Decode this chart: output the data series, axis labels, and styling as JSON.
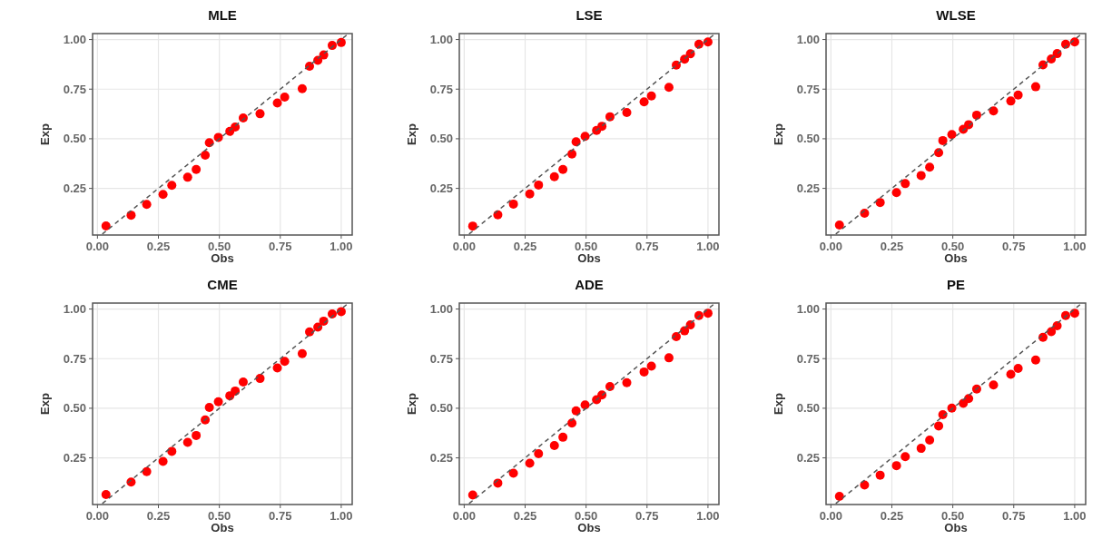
{
  "chart_data": [
    {
      "type": "scatter",
      "title": "MLE",
      "xlabel": "Obs",
      "ylabel": "Exp",
      "xlim": [
        -0.02,
        1.045
      ],
      "ylim": [
        0.015,
        1.03
      ],
      "grid": true,
      "xticks": [
        {
          "value": 0,
          "label": "0.00"
        },
        {
          "value": 0.25,
          "label": "0.25"
        },
        {
          "value": 0.5,
          "label": "0.50"
        },
        {
          "value": 0.75,
          "label": "0.75"
        },
        {
          "value": 1,
          "label": "1.00"
        }
      ],
      "yticks": [
        {
          "value": 0.25,
          "label": "0.25"
        },
        {
          "value": 0.5,
          "label": "0.50"
        },
        {
          "value": 0.75,
          "label": "0.75"
        },
        {
          "value": 1,
          "label": "1.00"
        }
      ],
      "series": [
        {
          "type": "scatter",
          "marker": "circle",
          "color": "#ff0000",
          "x": [
            0.035,
            0.138,
            0.202,
            0.269,
            0.305,
            0.37,
            0.405,
            0.442,
            0.459,
            0.496,
            0.543,
            0.565,
            0.598,
            0.667,
            0.738,
            0.768,
            0.84,
            0.87,
            0.904,
            0.928,
            0.963,
            1.0
          ],
          "values": [
            0.061,
            0.115,
            0.169,
            0.22,
            0.265,
            0.306,
            0.345,
            0.417,
            0.48,
            0.507,
            0.537,
            0.559,
            0.605,
            0.626,
            0.68,
            0.71,
            0.752,
            0.865,
            0.895,
            0.922,
            0.97,
            0.985
          ]
        },
        {
          "type": "line",
          "marker": "none",
          "line_style": "dashed",
          "color": "#555555",
          "x": [
            0.02,
            1.03
          ],
          "values": [
            0.02,
            1.03
          ]
        }
      ]
    },
    {
      "type": "scatter",
      "title": "LSE",
      "xlabel": "Obs",
      "ylabel": "Exp",
      "xlim": [
        -0.02,
        1.045
      ],
      "ylim": [
        0.015,
        1.03
      ],
      "grid": true,
      "xticks": [
        {
          "value": 0,
          "label": "0.00"
        },
        {
          "value": 0.25,
          "label": "0.25"
        },
        {
          "value": 0.5,
          "label": "0.50"
        },
        {
          "value": 0.75,
          "label": "0.75"
        },
        {
          "value": 1,
          "label": "1.00"
        }
      ],
      "yticks": [
        {
          "value": 0.25,
          "label": "0.25"
        },
        {
          "value": 0.5,
          "label": "0.50"
        },
        {
          "value": 0.75,
          "label": "0.75"
        },
        {
          "value": 1,
          "label": "1.00"
        }
      ],
      "series": [
        {
          "type": "scatter",
          "marker": "circle",
          "color": "#ff0000",
          "x": [
            0.035,
            0.138,
            0.202,
            0.269,
            0.305,
            0.37,
            0.405,
            0.442,
            0.459,
            0.496,
            0.543,
            0.565,
            0.598,
            0.667,
            0.738,
            0.768,
            0.84,
            0.87,
            0.904,
            0.928,
            0.963,
            1.0
          ],
          "values": [
            0.06,
            0.117,
            0.171,
            0.222,
            0.267,
            0.309,
            0.345,
            0.423,
            0.485,
            0.512,
            0.542,
            0.563,
            0.611,
            0.632,
            0.686,
            0.716,
            0.759,
            0.871,
            0.901,
            0.928,
            0.976,
            0.988
          ]
        },
        {
          "type": "line",
          "marker": "none",
          "line_style": "dashed",
          "color": "#555555",
          "x": [
            0.02,
            1.03
          ],
          "values": [
            0.02,
            1.03
          ]
        }
      ]
    },
    {
      "type": "scatter",
      "title": "WLSE",
      "xlabel": "Obs",
      "ylabel": "Exp",
      "xlim": [
        -0.02,
        1.045
      ],
      "ylim": [
        0.015,
        1.03
      ],
      "grid": true,
      "xticks": [
        {
          "value": 0,
          "label": "0.00"
        },
        {
          "value": 0.25,
          "label": "0.25"
        },
        {
          "value": 0.5,
          "label": "0.50"
        },
        {
          "value": 0.75,
          "label": "0.75"
        },
        {
          "value": 1,
          "label": "1.00"
        }
      ],
      "yticks": [
        {
          "value": 0.25,
          "label": "0.25"
        },
        {
          "value": 0.5,
          "label": "0.50"
        },
        {
          "value": 0.75,
          "label": "0.75"
        },
        {
          "value": 1,
          "label": "1.00"
        }
      ],
      "series": [
        {
          "type": "scatter",
          "marker": "circle",
          "color": "#ff0000",
          "x": [
            0.035,
            0.138,
            0.202,
            0.269,
            0.305,
            0.37,
            0.405,
            0.442,
            0.459,
            0.496,
            0.543,
            0.565,
            0.598,
            0.667,
            0.738,
            0.768,
            0.84,
            0.87,
            0.904,
            0.928,
            0.963,
            1.0
          ],
          "values": [
            0.065,
            0.125,
            0.179,
            0.229,
            0.274,
            0.315,
            0.357,
            0.43,
            0.491,
            0.521,
            0.548,
            0.571,
            0.619,
            0.64,
            0.69,
            0.72,
            0.762,
            0.872,
            0.902,
            0.929,
            0.976,
            0.988
          ]
        },
        {
          "type": "line",
          "marker": "none",
          "line_style": "dashed",
          "color": "#555555",
          "x": [
            0.02,
            1.03
          ],
          "values": [
            0.02,
            1.03
          ]
        }
      ]
    },
    {
      "type": "scatter",
      "title": "CME",
      "xlabel": "Obs",
      "ylabel": "Exp",
      "xlim": [
        -0.02,
        1.045
      ],
      "ylim": [
        0.015,
        1.03
      ],
      "grid": true,
      "xticks": [
        {
          "value": 0,
          "label": "0.00"
        },
        {
          "value": 0.25,
          "label": "0.25"
        },
        {
          "value": 0.5,
          "label": "0.50"
        },
        {
          "value": 0.75,
          "label": "0.75"
        },
        {
          "value": 1,
          "label": "1.00"
        }
      ],
      "yticks": [
        {
          "value": 0.25,
          "label": "0.25"
        },
        {
          "value": 0.5,
          "label": "0.50"
        },
        {
          "value": 0.75,
          "label": "0.75"
        },
        {
          "value": 1,
          "label": "1.00"
        }
      ],
      "series": [
        {
          "type": "scatter",
          "marker": "circle",
          "color": "#ff0000",
          "x": [
            0.035,
            0.138,
            0.202,
            0.269,
            0.305,
            0.37,
            0.405,
            0.442,
            0.459,
            0.496,
            0.543,
            0.565,
            0.598,
            0.667,
            0.738,
            0.768,
            0.84,
            0.87,
            0.904,
            0.928,
            0.963,
            1.0
          ],
          "values": [
            0.065,
            0.128,
            0.181,
            0.232,
            0.283,
            0.328,
            0.363,
            0.441,
            0.504,
            0.533,
            0.563,
            0.587,
            0.632,
            0.65,
            0.703,
            0.736,
            0.775,
            0.885,
            0.909,
            0.939,
            0.975,
            0.987
          ]
        },
        {
          "type": "line",
          "marker": "none",
          "line_style": "dashed",
          "color": "#555555",
          "x": [
            0.02,
            1.03
          ],
          "values": [
            0.02,
            1.03
          ]
        }
      ]
    },
    {
      "type": "scatter",
      "title": "ADE",
      "xlabel": "Obs",
      "ylabel": "Exp",
      "xlim": [
        -0.02,
        1.045
      ],
      "ylim": [
        0.015,
        1.03
      ],
      "grid": true,
      "xticks": [
        {
          "value": 0,
          "label": "0.00"
        },
        {
          "value": 0.25,
          "label": "0.25"
        },
        {
          "value": 0.5,
          "label": "0.50"
        },
        {
          "value": 0.75,
          "label": "0.75"
        },
        {
          "value": 1,
          "label": "1.00"
        }
      ],
      "yticks": [
        {
          "value": 0.25,
          "label": "0.25"
        },
        {
          "value": 0.5,
          "label": "0.50"
        },
        {
          "value": 0.75,
          "label": "0.75"
        },
        {
          "value": 1,
          "label": "1.00"
        }
      ],
      "series": [
        {
          "type": "scatter",
          "marker": "circle",
          "color": "#ff0000",
          "x": [
            0.035,
            0.138,
            0.202,
            0.269,
            0.305,
            0.37,
            0.405,
            0.442,
            0.459,
            0.496,
            0.543,
            0.565,
            0.598,
            0.667,
            0.738,
            0.768,
            0.84,
            0.87,
            0.904,
            0.928,
            0.963,
            1.0
          ],
          "values": [
            0.063,
            0.123,
            0.173,
            0.223,
            0.271,
            0.312,
            0.354,
            0.425,
            0.487,
            0.517,
            0.543,
            0.567,
            0.609,
            0.629,
            0.683,
            0.712,
            0.754,
            0.861,
            0.89,
            0.92,
            0.967,
            0.979
          ]
        },
        {
          "type": "line",
          "marker": "none",
          "line_style": "dashed",
          "color": "#555555",
          "x": [
            0.02,
            1.03
          ],
          "values": [
            0.02,
            1.03
          ]
        }
      ]
    },
    {
      "type": "scatter",
      "title": "PE",
      "xlabel": "Obs",
      "ylabel": "Exp",
      "xlim": [
        -0.02,
        1.045
      ],
      "ylim": [
        0.015,
        1.03
      ],
      "grid": true,
      "xticks": [
        {
          "value": 0,
          "label": "0.00"
        },
        {
          "value": 0.25,
          "label": "0.25"
        },
        {
          "value": 0.5,
          "label": "0.50"
        },
        {
          "value": 0.75,
          "label": "0.75"
        },
        {
          "value": 1,
          "label": "1.00"
        }
      ],
      "yticks": [
        {
          "value": 0.25,
          "label": "0.25"
        },
        {
          "value": 0.5,
          "label": "0.50"
        },
        {
          "value": 0.75,
          "label": "0.75"
        },
        {
          "value": 1,
          "label": "1.00"
        }
      ],
      "series": [
        {
          "type": "scatter",
          "marker": "circle",
          "color": "#ff0000",
          "x": [
            0.035,
            0.138,
            0.202,
            0.269,
            0.305,
            0.37,
            0.405,
            0.442,
            0.459,
            0.496,
            0.543,
            0.565,
            0.598,
            0.667,
            0.738,
            0.768,
            0.84,
            0.87,
            0.904,
            0.928,
            0.963,
            1.0
          ],
          "values": [
            0.056,
            0.113,
            0.163,
            0.211,
            0.256,
            0.298,
            0.34,
            0.411,
            0.468,
            0.501,
            0.525,
            0.549,
            0.597,
            0.617,
            0.671,
            0.701,
            0.743,
            0.857,
            0.886,
            0.916,
            0.967,
            0.979
          ]
        },
        {
          "type": "line",
          "marker": "none",
          "line_style": "dashed",
          "color": "#555555",
          "x": [
            0.02,
            1.03
          ],
          "values": [
            0.02,
            1.03
          ]
        }
      ]
    }
  ]
}
